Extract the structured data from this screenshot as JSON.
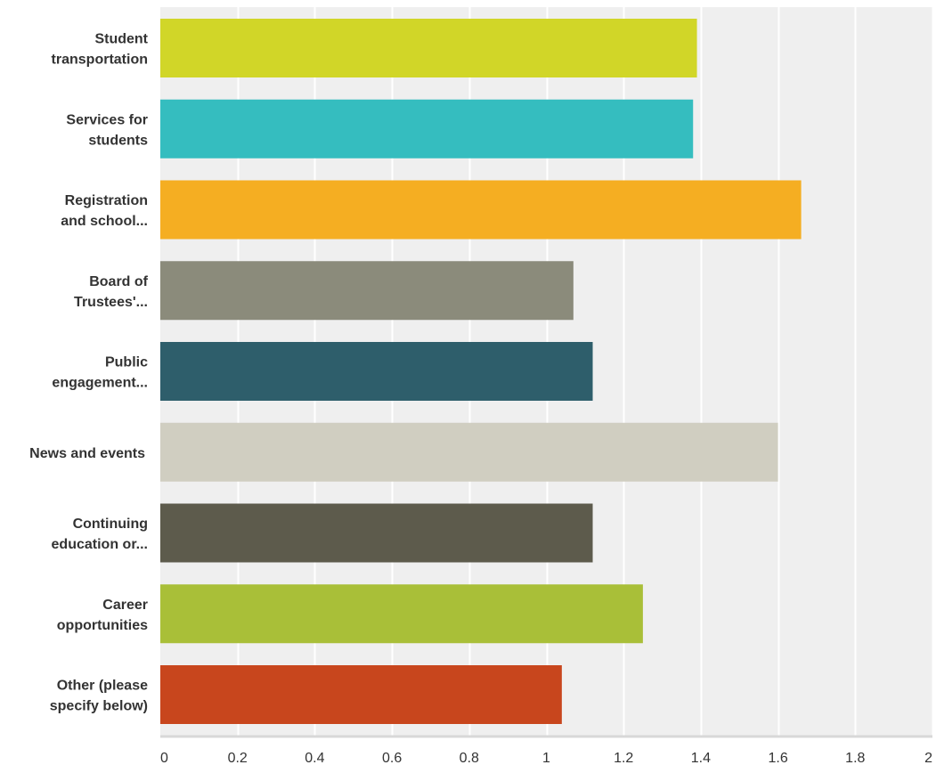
{
  "chart_data": {
    "type": "bar",
    "orientation": "horizontal",
    "categories": [
      [
        "Student",
        "transportation"
      ],
      [
        "Services for",
        "students"
      ],
      [
        "Registration",
        "and school..."
      ],
      [
        "Board of",
        "Trustees'..."
      ],
      [
        "Public",
        "engagement..."
      ],
      [
        "News and events"
      ],
      [
        "Continuing",
        "education or..."
      ],
      [
        "Career",
        "opportunities"
      ],
      [
        "Other (please",
        "specify below)"
      ]
    ],
    "values": [
      1.39,
      1.38,
      1.66,
      1.07,
      1.12,
      1.6,
      1.12,
      1.25,
      1.04
    ],
    "colors": [
      "#d1d628",
      "#35bdbf",
      "#f5ae22",
      "#8b8b7b",
      "#2e5e6b",
      "#d0cec1",
      "#5d5b4c",
      "#a9bf38",
      "#c8461d"
    ],
    "xlim": [
      0,
      2
    ],
    "x_ticks": [
      "0",
      "0.2",
      "0.4",
      "0.6",
      "0.8",
      "1",
      "1.2",
      "1.4",
      "1.6",
      "1.8",
      "2"
    ],
    "grid": true,
    "plot_background": "#efefef",
    "axis_color": "#d8d8d8"
  }
}
